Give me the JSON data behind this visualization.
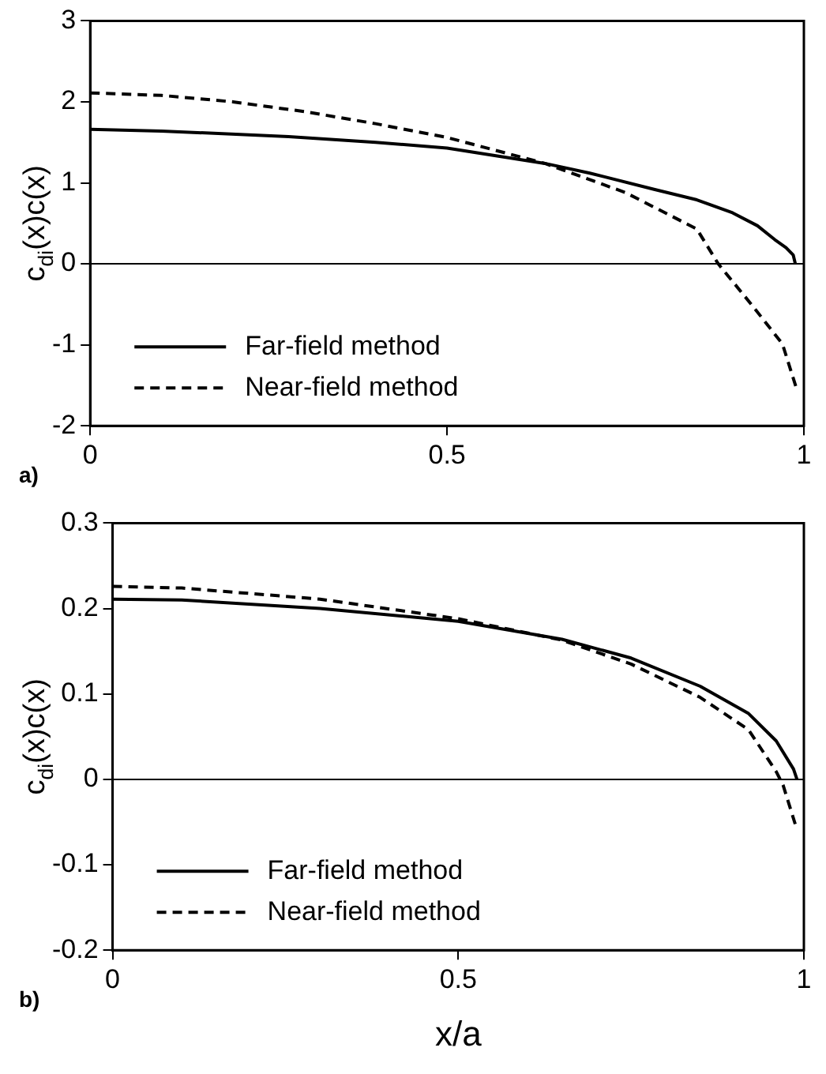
{
  "chart_data": [
    {
      "type": "line",
      "ylabel": "c$_{di}$(x)c(x)",
      "annotations": [
        "a)"
      ],
      "xlim": [
        0,
        1
      ],
      "xticks": [
        0,
        0.5,
        1
      ],
      "ylim": [
        -2,
        3
      ],
      "yticks": [
        -2,
        -1,
        0,
        1,
        2,
        3
      ],
      "grid": false,
      "legend": "bottom left",
      "marker": "none",
      "ref_lines": [
        {
          "axis": "y",
          "value": 0
        }
      ],
      "series": [
        {
          "name": "Far-field method",
          "color": "#000000",
          "line_style": "solid",
          "x": [
            0,
            0.1,
            0.278,
            0.4,
            0.5,
            0.637,
            0.7,
            0.79,
            0.85,
            0.9,
            0.935,
            0.959,
            0.975,
            0.985,
            0.988
          ],
          "values": [
            1.66,
            1.64,
            1.57,
            1.5,
            1.43,
            1.24,
            1.12,
            0.92,
            0.79,
            0.63,
            0.47,
            0.3,
            0.2,
            0.11,
            0
          ]
        },
        {
          "name": "Near-field method",
          "color": "#000000",
          "line_style": "dashed",
          "x": [
            0,
            0.1,
            0.2,
            0.3,
            0.4,
            0.5,
            0.637,
            0.75,
            0.85,
            0.88,
            0.93,
            0.97,
            0.99
          ],
          "values": [
            2.11,
            2.08,
            2.0,
            1.88,
            1.73,
            1.56,
            1.24,
            0.88,
            0.43,
            0,
            -0.54,
            -0.99,
            -1.55
          ]
        }
      ]
    },
    {
      "type": "line",
      "xlabel": "x/a",
      "ylabel": "c$_{di}$(x)c(x)",
      "annotations": [
        "b)"
      ],
      "xlim": [
        0,
        1
      ],
      "xticks": [
        0,
        0.5,
        1
      ],
      "ylim": [
        -0.2,
        0.3
      ],
      "yticks": [
        -0.2,
        -0.1,
        0,
        0.1,
        0.2,
        0.3
      ],
      "grid": false,
      "legend": "bottom left",
      "marker": "none",
      "ref_lines": [
        {
          "axis": "y",
          "value": 0
        }
      ],
      "series": [
        {
          "name": "Far-field method",
          "color": "#000000",
          "line_style": "solid",
          "x": [
            0,
            0.1,
            0.3,
            0.5,
            0.65,
            0.75,
            0.85,
            0.92,
            0.96,
            0.985,
            0.99
          ],
          "values": [
            0.211,
            0.21,
            0.2,
            0.185,
            0.164,
            0.142,
            0.109,
            0.077,
            0.045,
            0.012,
            0
          ]
        },
        {
          "name": "Near-field method",
          "color": "#000000",
          "line_style": "dashed",
          "x": [
            0,
            0.1,
            0.3,
            0.5,
            0.65,
            0.75,
            0.85,
            0.92,
            0.96,
            0.97,
            0.99
          ],
          "values": [
            0.226,
            0.224,
            0.211,
            0.188,
            0.163,
            0.135,
            0.096,
            0.058,
            0.009,
            -0.007,
            -0.059
          ]
        }
      ]
    }
  ]
}
